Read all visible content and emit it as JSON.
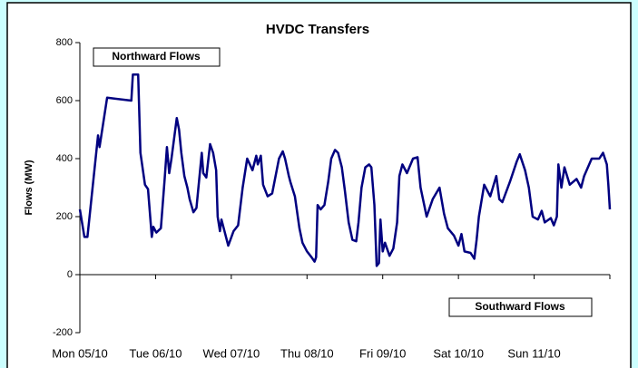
{
  "chart_data": {
    "type": "line",
    "title": "HVDC Transfers",
    "ylabel": "Flows (MW)",
    "annotations": [
      "Northward Flows",
      "Southward Flows"
    ],
    "x": [
      0,
      0.06,
      0.1,
      0.24,
      0.26,
      0.36,
      0.68,
      0.7,
      0.77,
      0.78,
      0.8,
      0.86,
      0.9,
      0.95,
      0.97,
      1.01,
      1.07,
      1.12,
      1.15,
      1.18,
      1.21,
      1.28,
      1.31,
      1.34,
      1.38,
      1.42,
      1.45,
      1.5,
      1.54,
      1.61,
      1.63,
      1.67,
      1.72,
      1.76,
      1.8,
      1.82,
      1.85,
      1.87,
      1.96,
      2.03,
      2.09,
      2.15,
      2.21,
      2.28,
      2.33,
      2.35,
      2.39,
      2.42,
      2.48,
      2.54,
      2.63,
      2.68,
      2.71,
      2.76,
      2.78,
      2.84,
      2.9,
      2.94,
      3.0,
      3.06,
      3.1,
      3.12,
      3.14,
      3.18,
      3.23,
      3.28,
      3.32,
      3.37,
      3.41,
      3.46,
      3.5,
      3.55,
      3.6,
      3.65,
      3.68,
      3.72,
      3.77,
      3.82,
      3.85,
      3.89,
      3.92,
      3.95,
      3.97,
      4.0,
      4.03,
      4.09,
      4.14,
      4.19,
      4.22,
      4.26,
      4.32,
      4.4,
      4.46,
      4.5,
      4.54,
      4.58,
      4.66,
      4.75,
      4.81,
      4.86,
      4.94,
      5.0,
      5.04,
      5.08,
      5.16,
      5.21,
      5.24,
      5.27,
      5.34,
      5.42,
      5.5,
      5.54,
      5.58,
      5.68,
      5.77,
      5.81,
      5.88,
      5.93,
      5.98,
      6.05,
      6.1,
      6.14,
      6.22,
      6.26,
      6.3,
      6.32,
      6.36,
      6.4,
      6.47,
      6.56,
      6.62,
      6.66,
      6.76,
      6.86,
      6.91,
      6.96,
      6.98,
      7.0
    ],
    "series": [
      {
        "name": "HVDC",
        "color": "#000080",
        "values": [
          225,
          130,
          130,
          480,
          440,
          610,
          600,
          690,
          690,
          600,
          420,
          310,
          295,
          130,
          165,
          145,
          160,
          330,
          440,
          350,
          400,
          540,
          500,
          420,
          340,
          300,
          260,
          215,
          230,
          420,
          350,
          335,
          450,
          420,
          360,
          200,
          150,
          190,
          100,
          150,
          170,
          300,
          400,
          360,
          410,
          380,
          410,
          310,
          270,
          280,
          400,
          425,
          400,
          340,
          320,
          270,
          160,
          110,
          80,
          60,
          45,
          60,
          240,
          225,
          240,
          320,
          400,
          430,
          420,
          370,
          290,
          180,
          120,
          115,
          180,
          300,
          370,
          380,
          370,
          240,
          30,
          40,
          190,
          80,
          110,
          65,
          90,
          180,
          340,
          380,
          350,
          400,
          405,
          300,
          250,
          200,
          260,
          300,
          210,
          160,
          135,
          100,
          140,
          80,
          75,
          55,
          120,
          200,
          310,
          270,
          340,
          260,
          250,
          320,
          390,
          415,
          360,
          300,
          200,
          190,
          220,
          180,
          195,
          170,
          200,
          380,
          300,
          370,
          310,
          330,
          300,
          340,
          400,
          400,
          420,
          380,
          310,
          225
        ]
      }
    ],
    "xlim": [
      0,
      7
    ],
    "xticks": [
      {
        "value": 0,
        "label": "Mon 05/10"
      },
      {
        "value": 1,
        "label": "Tue 06/10"
      },
      {
        "value": 2,
        "label": "Wed 07/10"
      },
      {
        "value": 3,
        "label": "Thu 08/10"
      },
      {
        "value": 4,
        "label": "Fri 09/10"
      },
      {
        "value": 5,
        "label": "Sat 10/10"
      },
      {
        "value": 6,
        "label": "Sun 11/10"
      }
    ],
    "ylim": [
      -200,
      800
    ],
    "yticks": [
      -200,
      0,
      200,
      400,
      600,
      800
    ],
    "grid": false
  }
}
